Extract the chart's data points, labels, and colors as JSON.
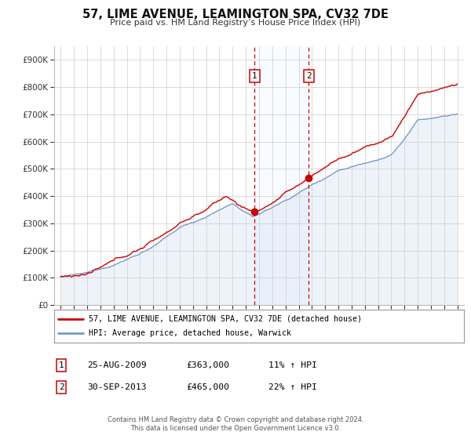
{
  "title": "57, LIME AVENUE, LEAMINGTON SPA, CV32 7DE",
  "subtitle": "Price paid vs. HM Land Registry’s House Price Index (HPI)",
  "legend_label_red": "57, LIME AVENUE, LEAMINGTON SPA, CV32 7DE (detached house)",
  "legend_label_blue": "HPI: Average price, detached house, Warwick",
  "annotation1_date": "25-AUG-2009",
  "annotation1_price": "£363,000",
  "annotation1_hpi": "11% ↑ HPI",
  "annotation1_year": 2009.65,
  "annotation1_value": 363000,
  "annotation2_date": "30-SEP-2013",
  "annotation2_price": "£465,000",
  "annotation2_hpi": "22% ↑ HPI",
  "annotation2_year": 2013.75,
  "annotation2_value": 465000,
  "footer_line1": "Contains HM Land Registry data © Crown copyright and database right 2024.",
  "footer_line2": "This data is licensed under the Open Government Licence v3.0.",
  "red_color": "#cc0000",
  "blue_color": "#7799cc",
  "blue_fill_color": "#c8d8ee",
  "shading_color": "#ddeeff",
  "ylim_min": 0,
  "ylim_max": 950000,
  "ytick_values": [
    0,
    100000,
    200000,
    300000,
    400000,
    500000,
    600000,
    700000,
    800000,
    900000
  ],
  "ytick_labels": [
    "£0",
    "£100K",
    "£200K",
    "£300K",
    "£400K",
    "£500K",
    "£600K",
    "£700K",
    "£800K",
    "£900K"
  ],
  "xmin": 1994.5,
  "xmax": 2025.5
}
